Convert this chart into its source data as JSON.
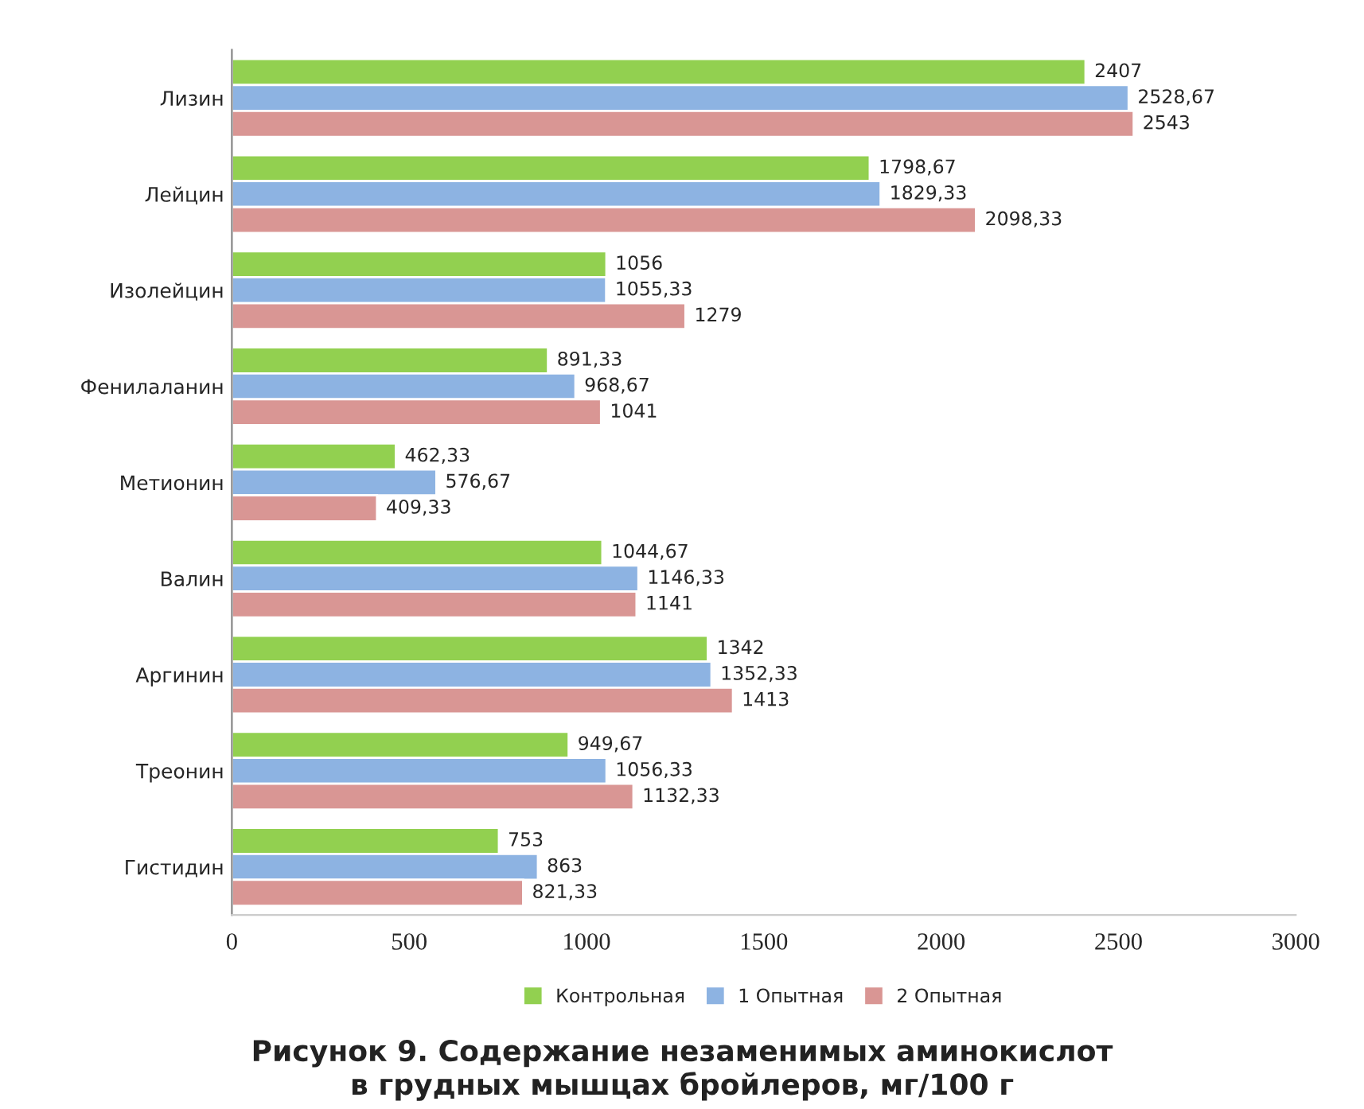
{
  "chart_data": {
    "type": "bar",
    "orientation": "horizontal",
    "title": "Рисунок 9. Содержание незаменимых аминокислот\nв грудных мышцах бройлеров, мг/100 г",
    "categories": [
      "Лизин",
      "Лейцин",
      "Изолейцин",
      "Фенилаланин",
      "Метионин",
      "Валин",
      "Аргинин",
      "Треонин",
      "Гистидин"
    ],
    "series": [
      {
        "name": "Контрольная",
        "color": "#92d050",
        "values": [
          2407,
          1798.67,
          1056,
          891.33,
          462.33,
          1044.67,
          1342,
          949.67,
          753
        ],
        "value_labels": [
          "2407",
          "1798,67",
          "1056",
          "891,33",
          "462,33",
          "1044,67",
          "1342",
          "949,67",
          "753"
        ]
      },
      {
        "name": "1 Опытная",
        "color": "#8db3e2",
        "values": [
          2528.67,
          1829.33,
          1055.33,
          968.67,
          576.67,
          1146.33,
          1352.33,
          1056.33,
          863
        ],
        "value_labels": [
          "2528,67",
          "1829,33",
          "1055,33",
          "968,67",
          "576,67",
          "1146,33",
          "1352,33",
          "1056,33",
          "863"
        ]
      },
      {
        "name": "2 Опытная",
        "color": "#d99694",
        "values": [
          2543,
          2098.33,
          1279,
          1041,
          409.33,
          1141,
          1413,
          1132.33,
          821.33
        ],
        "value_labels": [
          "2543",
          "2098,33",
          "1279",
          "1041",
          "409,33",
          "1141",
          "1413",
          "1132,33",
          "821,33"
        ]
      }
    ],
    "xlim": [
      0,
      3000
    ],
    "xticks": [
      0,
      500,
      1000,
      1500,
      2000,
      2500,
      3000
    ],
    "grid": false,
    "legend": "bottom"
  }
}
